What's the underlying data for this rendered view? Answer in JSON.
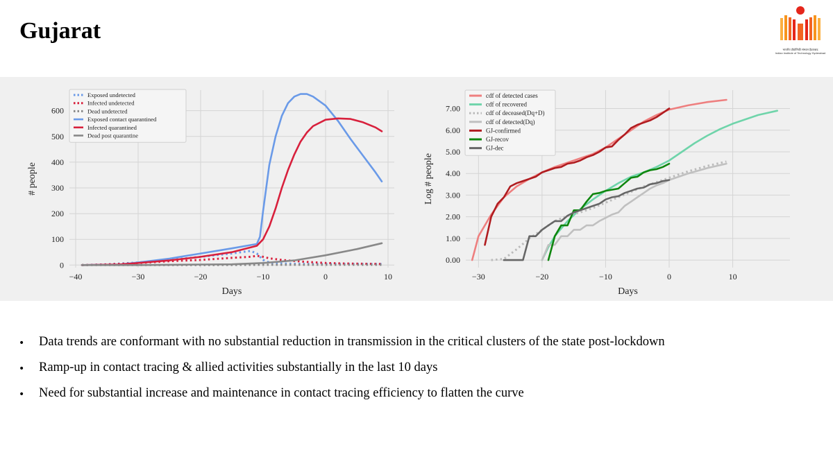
{
  "slide": {
    "title": "Gujarat",
    "logo_text": [
      "भारतीय प्रौद्योगिकी संस्थान हैदराबाद",
      "Indian Institute of Technology Hyderabad"
    ],
    "bullets": [
      "Data trends are conformant with no substantial reduction in transmission in the critical clusters of the state post-lockdown",
      "Ramp-up in contact tracing & allied activities substantially in the last 10 days",
      "Need for substantial increase and maintenance in contact tracing efficiency to flatten the curve"
    ]
  },
  "chart_data": [
    {
      "type": "line",
      "xlabel": "Days",
      "ylabel": "# people",
      "xlim": [
        -41,
        11
      ],
      "ylim": [
        -10,
        680
      ],
      "xticks": [
        -40,
        -30,
        -20,
        -10,
        0,
        10
      ],
      "yticks": [
        0,
        100,
        200,
        300,
        400,
        500,
        600
      ],
      "ytick_labels": [
        "0",
        "100",
        "200",
        "300",
        "400",
        "500",
        "600"
      ],
      "grid": true,
      "legend": "top-left",
      "series": [
        {
          "name": "Exposed undetected",
          "style": "dotted",
          "color": "#6a9ae8",
          "x": [
            -39,
            -35,
            -30,
            -25,
            -20,
            -15,
            -12,
            -11,
            -10,
            -9,
            -7,
            -5,
            -3,
            0,
            3,
            6,
            9
          ],
          "y": [
            0,
            3,
            10,
            20,
            32,
            45,
            55,
            45,
            20,
            10,
            6,
            5,
            4,
            4,
            4,
            4,
            4
          ]
        },
        {
          "name": "Infected undetected",
          "style": "dotted",
          "color": "#d8203c",
          "x": [
            -39,
            -35,
            -30,
            -25,
            -20,
            -15,
            -12,
            -11,
            -10,
            -9,
            -7,
            -5,
            -3,
            0,
            3,
            6,
            9
          ],
          "y": [
            0,
            2,
            8,
            15,
            20,
            28,
            32,
            36,
            32,
            26,
            20,
            16,
            12,
            8,
            6,
            5,
            4
          ]
        },
        {
          "name": "Dead undetected",
          "style": "dotted",
          "color": "#888888",
          "x": [
            -39,
            -20,
            -10,
            0,
            9
          ],
          "y": [
            0,
            0,
            1,
            1,
            1
          ]
        },
        {
          "name": "Exposed contact quarantined",
          "style": "solid",
          "color": "#6a9ae8",
          "x": [
            -39,
            -33,
            -30,
            -25,
            -20,
            -15,
            -11,
            -10.5,
            -10,
            -9,
            -8,
            -7,
            -6,
            -5,
            -4,
            -3,
            -2,
            0,
            2,
            4,
            6,
            8,
            9
          ],
          "y": [
            0,
            2,
            10,
            25,
            45,
            65,
            82,
            110,
            210,
            390,
            500,
            580,
            630,
            655,
            665,
            665,
            655,
            620,
            560,
            490,
            425,
            360,
            325
          ]
        },
        {
          "name": "Infected quarantined",
          "style": "solid",
          "color": "#d8203c",
          "x": [
            -39,
            -33,
            -30,
            -25,
            -20,
            -15,
            -11,
            -10,
            -9,
            -8,
            -7,
            -6,
            -5,
            -4,
            -3,
            -2,
            0,
            2,
            4,
            6,
            8,
            9
          ],
          "y": [
            0,
            2,
            8,
            18,
            32,
            50,
            75,
            100,
            150,
            220,
            300,
            370,
            430,
            480,
            515,
            540,
            565,
            570,
            568,
            555,
            535,
            520
          ]
        },
        {
          "name": "Dead post quarantine",
          "style": "solid",
          "color": "#888888",
          "x": [
            -39,
            -30,
            -20,
            -15,
            -10,
            -5,
            0,
            5,
            9
          ],
          "y": [
            0,
            0,
            2,
            3,
            8,
            18,
            38,
            62,
            85
          ]
        }
      ]
    },
    {
      "type": "line",
      "xlabel": "Days",
      "ylabel": "Log # people",
      "xlim": [
        -32,
        19
      ],
      "ylim": [
        -0.35,
        7.85
      ],
      "xticks": [
        -30,
        -20,
        -10,
        0,
        10
      ],
      "yticks": [
        0,
        1,
        2,
        3,
        4,
        5,
        6,
        7
      ],
      "ytick_labels": [
        "0.00",
        "1.00",
        "2.00",
        "3.00",
        "4.00",
        "5.00",
        "6.00",
        "7.00"
      ],
      "grid": true,
      "legend": "top-left",
      "series": [
        {
          "name": "cdf of detected cases",
          "style": "solid",
          "color": "#ee7f7f",
          "x": [
            -31,
            -30,
            -28,
            -26,
            -24,
            -22,
            -20,
            -18,
            -16,
            -14,
            -12,
            -10,
            -8,
            -6,
            -4,
            -2,
            0,
            3,
            6,
            9
          ],
          "y": [
            0,
            1.1,
            2.1,
            2.9,
            3.4,
            3.75,
            4.05,
            4.3,
            4.5,
            4.7,
            4.9,
            5.2,
            5.6,
            6.0,
            6.4,
            6.7,
            6.95,
            7.15,
            7.3,
            7.4
          ]
        },
        {
          "name": "cdf of recovered",
          "style": "solid",
          "color": "#6fd4aa",
          "x": [
            -20,
            -19,
            -18,
            -16,
            -14,
            -12,
            -10,
            -8,
            -6,
            -4,
            -2,
            0,
            2,
            4,
            6,
            8,
            10,
            12,
            14,
            17
          ],
          "y": [
            0,
            0.6,
            1.1,
            1.8,
            2.35,
            2.8,
            3.2,
            3.55,
            3.85,
            4.05,
            4.3,
            4.6,
            5.0,
            5.4,
            5.75,
            6.05,
            6.3,
            6.5,
            6.7,
            6.9
          ]
        },
        {
          "name": "cdf of deceased(Dq+D)",
          "style": "dotted",
          "color": "#bbbbbb",
          "x": [
            -28,
            -26,
            -24,
            -22,
            -20,
            -18,
            -16,
            -14,
            -12,
            -10,
            -8,
            -6,
            -4,
            -2,
            0,
            3,
            6,
            9
          ],
          "y": [
            0,
            0.05,
            0.5,
            1.0,
            1.4,
            1.8,
            2.05,
            2.2,
            2.4,
            2.65,
            2.9,
            3.15,
            3.4,
            3.6,
            3.8,
            4.1,
            4.35,
            4.55
          ]
        },
        {
          "name": "cdf of detected(Dq)",
          "style": "solid",
          "color": "#c0c0c0",
          "x": [
            -20,
            -19,
            -18,
            -17,
            -16,
            -15,
            -14,
            -13,
            -12,
            -11,
            -10,
            -9,
            -8,
            -7,
            -6,
            -5,
            -4,
            -3,
            -2,
            -1,
            0,
            3,
            6,
            9
          ],
          "y": [
            0,
            0.7,
            0.7,
            1.1,
            1.1,
            1.4,
            1.4,
            1.6,
            1.6,
            1.8,
            1.95,
            2.1,
            2.2,
            2.5,
            2.7,
            2.9,
            3.1,
            3.3,
            3.45,
            3.55,
            3.7,
            4.0,
            4.25,
            4.45
          ]
        },
        {
          "name": "GJ-confirmed",
          "style": "solid",
          "color": "#b01c20",
          "x": [
            -29,
            -28,
            -27,
            -26,
            -25,
            -24,
            -23,
            -22,
            -21,
            -20,
            -19,
            -18,
            -17,
            -16,
            -15,
            -14,
            -13,
            -12,
            -11,
            -10,
            -9,
            -8,
            -7,
            -6,
            -5,
            -4,
            -3,
            -2,
            -1,
            0
          ],
          "y": [
            0.7,
            2.0,
            2.6,
            2.9,
            3.4,
            3.55,
            3.65,
            3.75,
            3.85,
            4.05,
            4.15,
            4.25,
            4.3,
            4.45,
            4.5,
            4.6,
            4.75,
            4.85,
            5.0,
            5.2,
            5.25,
            5.55,
            5.8,
            6.1,
            6.25,
            6.35,
            6.45,
            6.6,
            6.8,
            7.0
          ]
        },
        {
          "name": "GJ-recov",
          "style": "solid",
          "color": "#0e860e",
          "x": [
            -19,
            -18,
            -17,
            -16,
            -15,
            -14,
            -13,
            -12,
            -11,
            -10,
            -9,
            -8,
            -7,
            -6,
            -5,
            -4,
            -3,
            -2,
            -1,
            0
          ],
          "y": [
            0,
            1.1,
            1.6,
            1.6,
            2.3,
            2.3,
            2.7,
            3.05,
            3.1,
            3.2,
            3.25,
            3.3,
            3.55,
            3.8,
            3.85,
            4.05,
            4.15,
            4.2,
            4.3,
            4.45
          ]
        },
        {
          "name": "GJ-dec",
          "style": "solid",
          "color": "#666666",
          "x": [
            -26,
            -23,
            -22,
            -21,
            -20,
            -19,
            -18,
            -17,
            -16,
            -15,
            -14,
            -13,
            -12,
            -11,
            -10,
            -9,
            -8,
            -7,
            -6,
            -5,
            -4,
            -3,
            -2,
            -1,
            0
          ],
          "y": [
            0,
            0,
            1.1,
            1.1,
            1.4,
            1.6,
            1.8,
            1.8,
            2.05,
            2.2,
            2.3,
            2.4,
            2.5,
            2.6,
            2.8,
            2.9,
            2.95,
            3.1,
            3.2,
            3.3,
            3.35,
            3.5,
            3.55,
            3.65,
            3.7
          ]
        }
      ]
    }
  ]
}
